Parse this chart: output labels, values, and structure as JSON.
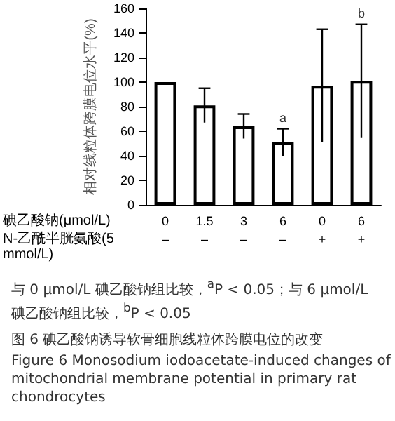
{
  "chart_data": {
    "type": "bar",
    "title": "图 6  碘乙酸钠诱导软骨细胞线粒体跨膜电位的改变",
    "subtitle": "Figure 6  Monosodium iodoacetate-induced changes of mitochondrial membrane potential in primary rat chondrocytes",
    "ylabel": "相对线粒体跨膜电位水平(%)",
    "categories": [
      "0\n–",
      "1.5\n–",
      "3\n–",
      "6\n–",
      "0\n+",
      "6\n+"
    ],
    "values": [
      100,
      81,
      64,
      51,
      97,
      101
    ],
    "errors": [
      null,
      14,
      10,
      11,
      46,
      46
    ],
    "color": "#ffffff",
    "ylim": [
      0,
      160
    ],
    "yticks": [
      0,
      20,
      40,
      60,
      80,
      100,
      120,
      140,
      160
    ],
    "grid": false,
    "annotations": [
      {
        "text": "a",
        "x": "6\n–",
        "y": 66
      },
      {
        "text": "b",
        "x": "6\n+",
        "y": 151
      },
      "碘乙酸钠(μmol/L)",
      "N-乙酰半胱氨酸(5 mmol/L)",
      "与 0 μmol/L 碘乙酸钠组比较，$^{a}$P < 0.05；与 6 μmol/L 碘乙酸钠组比较，$^{b}$P < 0.05"
    ]
  }
}
